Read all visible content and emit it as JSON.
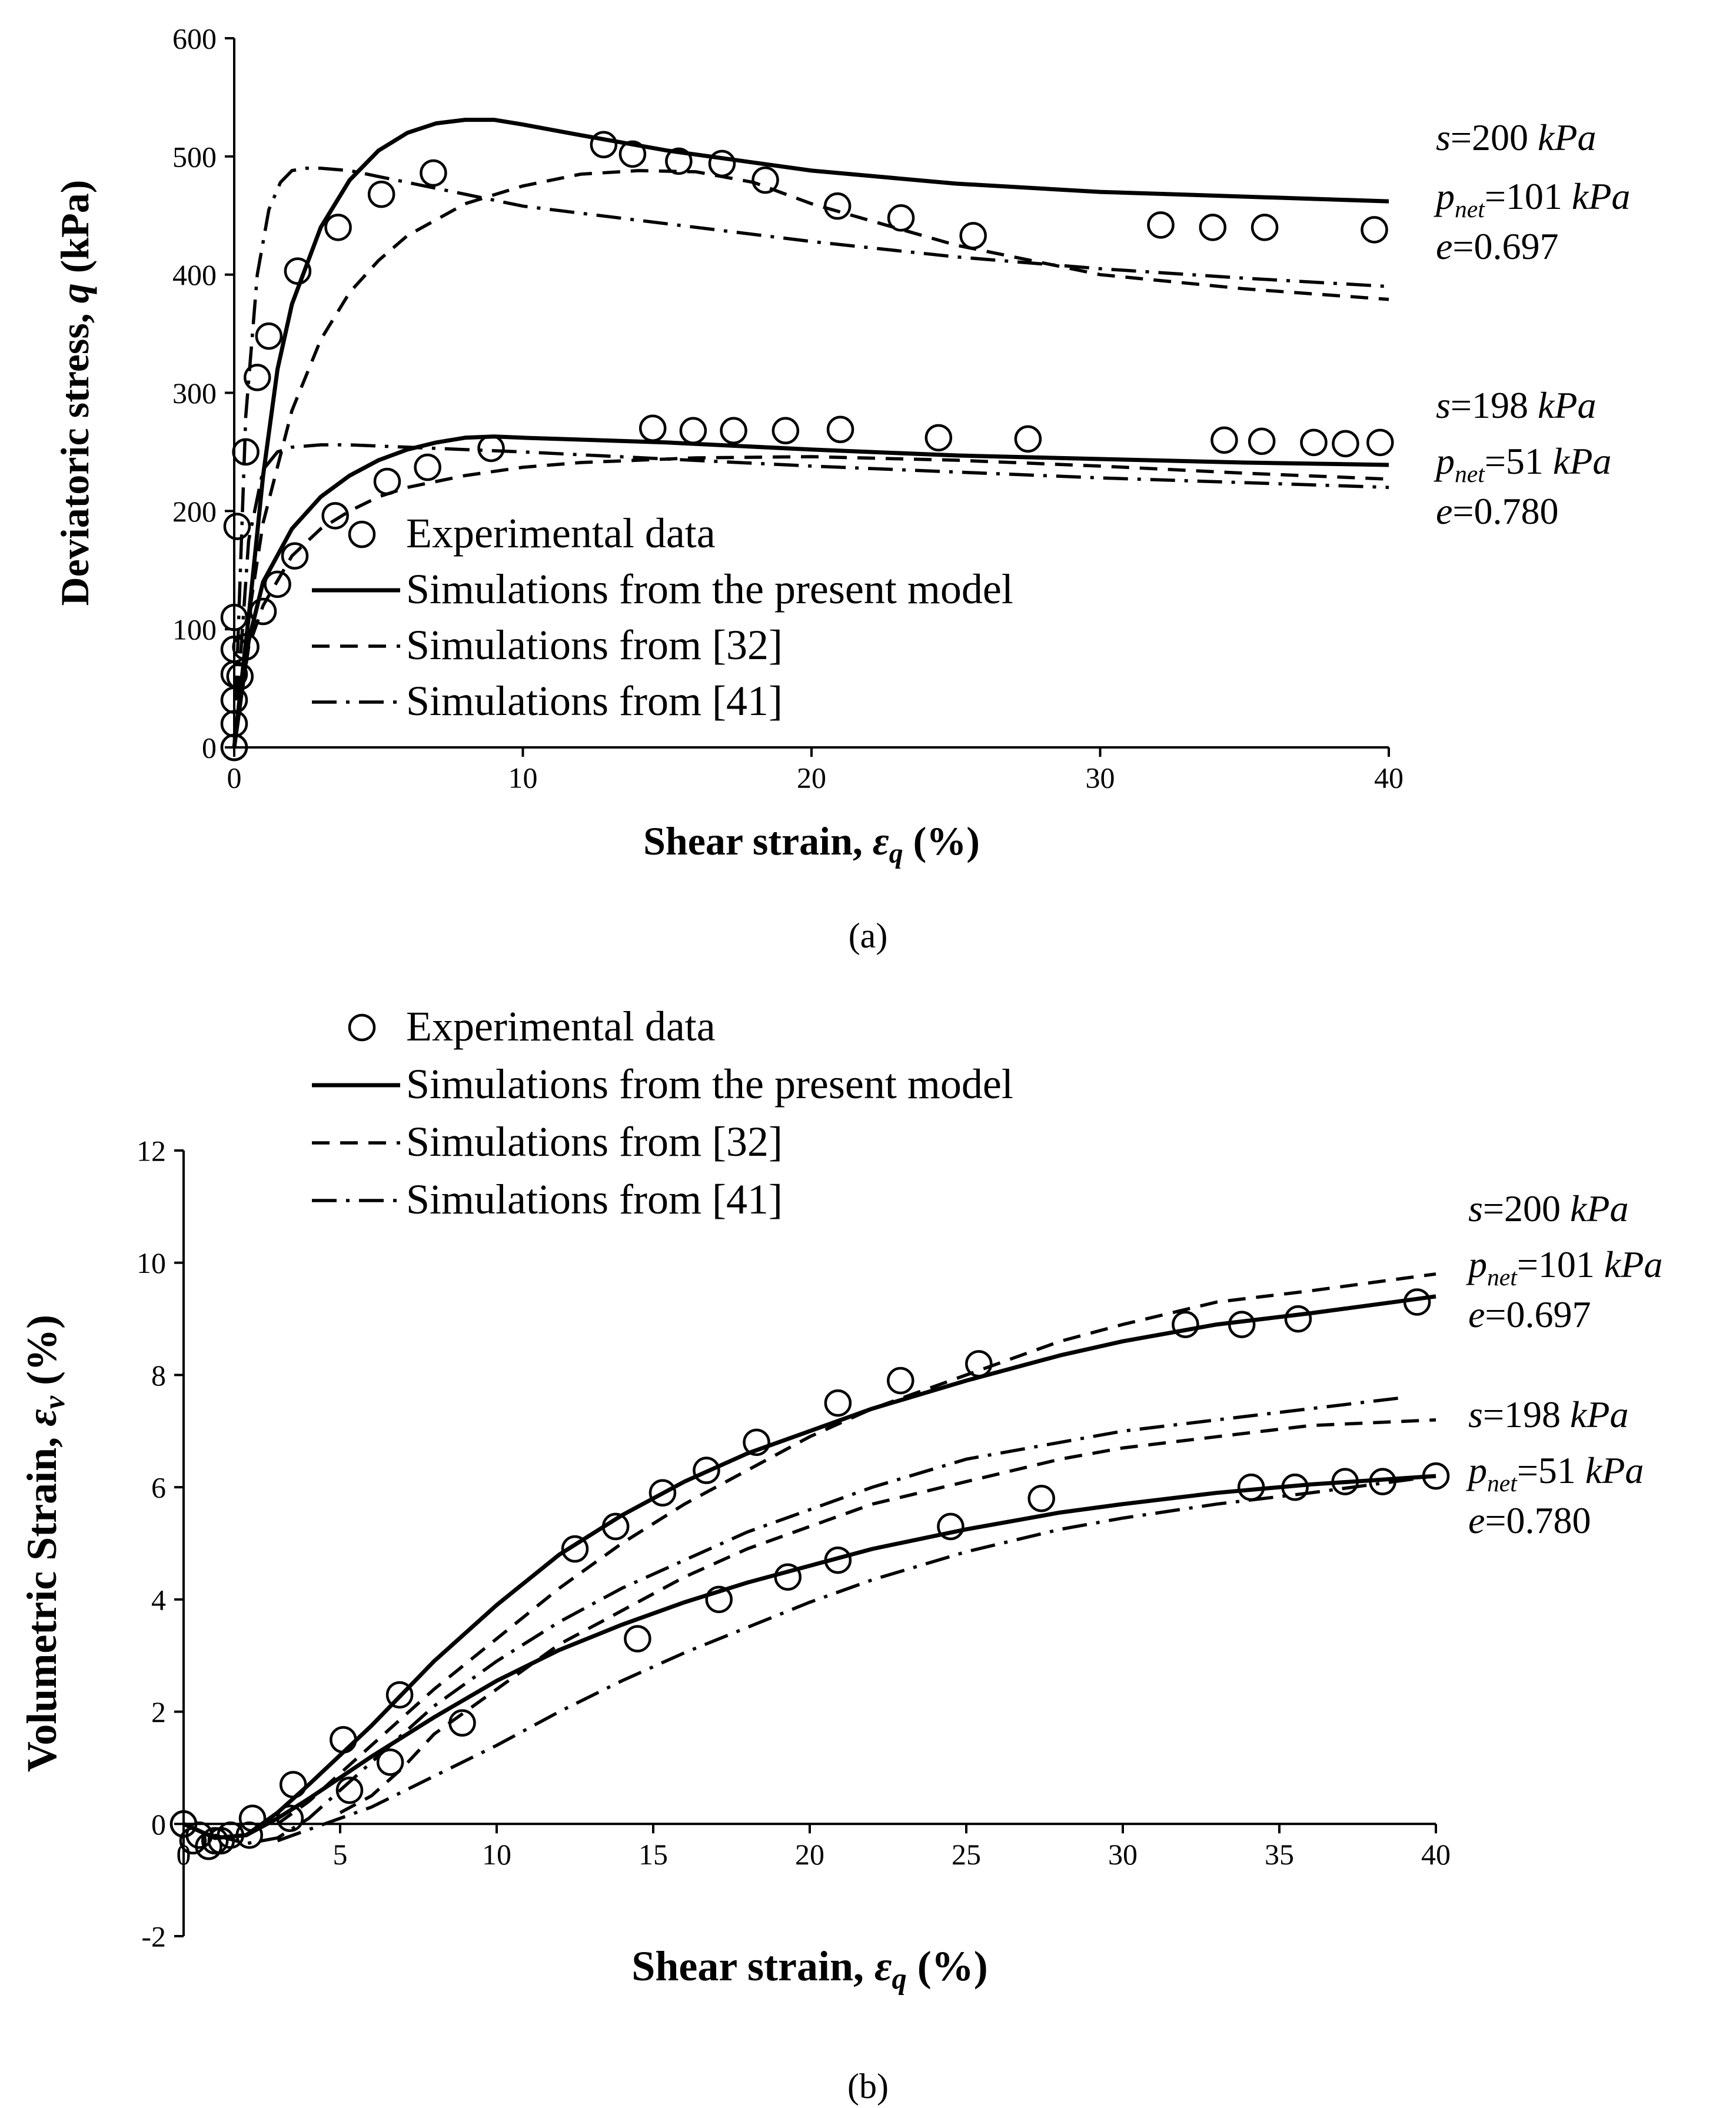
{
  "chart_data": [
    {
      "panel_label": "(a)",
      "type": "line+scatter",
      "xlabel": "Shear strain, εq (%)",
      "xlabel_prefix": "Shear strain, ",
      "xlabel_sym": "ε",
      "xlabel_sub": "q",
      "xlabel_suffix": " (%)",
      "ylabel": "Deviatoric stress, q (kPa)",
      "ylabel_prefix": "Deviatoric stress, ",
      "ylabel_sym": "q",
      "ylabel_sub": "",
      "ylabel_suffix": " (kPa)",
      "xlim": [
        0,
        40
      ],
      "ylim": [
        0,
        600
      ],
      "xticks": [
        0,
        10,
        20,
        30,
        40
      ],
      "yticks": [
        0,
        100,
        200,
        300,
        400,
        500,
        600
      ],
      "legend": [
        {
          "label": "Experimental data",
          "style": "marker"
        },
        {
          "label": "Simulations from the present model",
          "style": "solid"
        },
        {
          "label": "Simulations from [32]",
          "style": "dashed"
        },
        {
          "label": "Simulations from [41]",
          "style": "dashdot"
        }
      ],
      "conditions": [
        {
          "s": "s=200 kPa",
          "p": "pnet=101 kPa",
          "e": "e=0.697"
        },
        {
          "s": "s=198 kPa",
          "p": "pnet=51 kPa",
          "e": "e=0.780"
        }
      ],
      "series": [
        {
          "name": "Experimental data (s=200 kPa)",
          "style": "marker",
          "x": [
            0,
            0,
            0,
            0,
            0,
            0,
            0.1,
            0.4,
            0.8,
            1.2,
            2.2,
            3.6,
            5.1,
            6.9,
            12.8,
            13.8,
            15.4,
            16.9,
            18.4,
            20.9,
            23.1,
            25.6,
            32.1,
            33.9,
            35.7,
            39.5
          ],
          "y": [
            0,
            20,
            40,
            62,
            83,
            110,
            187,
            250,
            313,
            348,
            403,
            440,
            468,
            486,
            510,
            502,
            496,
            494,
            480,
            458,
            448,
            433,
            442,
            440,
            440,
            438
          ]
        },
        {
          "name": "Experimental data (s=198 kPa)",
          "style": "marker",
          "x": [
            0,
            0.2,
            0.4,
            1.0,
            1.5,
            2.1,
            3.5,
            5.3,
            6.7,
            8.9,
            14.5,
            15.9,
            17.3,
            19.1,
            21.0,
            24.4,
            27.5,
            34.3,
            35.6,
            37.4,
            38.5,
            39.7
          ],
          "y": [
            0,
            60,
            85,
            115,
            138,
            162,
            196,
            225,
            237,
            253,
            270,
            268,
            268,
            268,
            269,
            262,
            261,
            260,
            259,
            258,
            257,
            258
          ]
        },
        {
          "name": "Present model (s=200 kPa)",
          "style": "solid",
          "x": [
            0,
            0.5,
            1,
            1.5,
            2,
            3,
            4,
            5,
            6,
            7,
            8,
            9,
            10,
            12,
            15,
            20,
            25,
            30,
            35,
            40
          ],
          "y": [
            0,
            110,
            230,
            320,
            375,
            440,
            480,
            505,
            520,
            528,
            531,
            531,
            527,
            518,
            505,
            488,
            477,
            470,
            466,
            462
          ]
        },
        {
          "name": "Present model (s=198 kPa)",
          "style": "solid",
          "x": [
            0,
            0.5,
            1,
            2,
            3,
            4,
            5,
            6,
            7,
            8,
            9,
            10,
            15,
            20,
            25,
            30,
            35,
            40
          ],
          "y": [
            0,
            90,
            140,
            185,
            212,
            230,
            243,
            252,
            258,
            262,
            263,
            262,
            258,
            252,
            247,
            244,
            241,
            239
          ]
        },
        {
          "name": "Simulations from [32] (s=200 kPa)",
          "style": "dashed",
          "x": [
            0,
            0.5,
            1,
            2,
            3,
            4,
            5,
            6,
            8,
            10,
            12,
            14,
            16,
            18,
            20,
            25,
            30,
            35,
            40
          ],
          "y": [
            0,
            110,
            190,
            285,
            345,
            385,
            412,
            433,
            460,
            475,
            485,
            488,
            487,
            478,
            460,
            425,
            400,
            388,
            379
          ]
        },
        {
          "name": "Simulations from [32] (s=198 kPa)",
          "style": "dashed",
          "x": [
            0,
            0.5,
            1,
            2,
            3,
            4,
            5,
            6,
            8,
            10,
            12,
            14,
            16,
            20,
            25,
            30,
            35,
            40
          ],
          "y": [
            0,
            85,
            120,
            162,
            185,
            200,
            212,
            220,
            230,
            237,
            241,
            243,
            245,
            246,
            243,
            238,
            232,
            227
          ]
        },
        {
          "name": "Simulations from [41] (s=200 kPa)",
          "style": "dashdot",
          "x": [
            0,
            0.4,
            0.8,
            1.2,
            1.6,
            2.0,
            2.5,
            3,
            4,
            6,
            8,
            10,
            15,
            20,
            25,
            30,
            35,
            40
          ],
          "y": [
            0,
            280,
            400,
            455,
            478,
            488,
            490,
            490,
            488,
            478,
            468,
            458,
            443,
            428,
            415,
            405,
            397,
            390
          ]
        },
        {
          "name": "Simulations from [41] (s=198 kPa)",
          "style": "dashdot",
          "x": [
            0,
            0.5,
            1,
            1.5,
            2,
            3,
            4,
            6,
            10,
            15,
            20,
            25,
            30,
            35,
            40
          ],
          "y": [
            0,
            175,
            235,
            250,
            254,
            256,
            256,
            254,
            250,
            244,
            238,
            233,
            228,
            224,
            220
          ]
        }
      ]
    },
    {
      "panel_label": "(b)",
      "type": "line+scatter",
      "xlabel": "Shear strain, εq (%)",
      "xlabel_prefix": "Shear strain, ",
      "xlabel_sym": "ε",
      "xlabel_sub": "q",
      "xlabel_suffix": " (%)",
      "ylabel": "Volumetric Strain, εv (%)",
      "ylabel_prefix": "Volumetric Strain, ",
      "ylabel_sym": "ε",
      "ylabel_sub": "v",
      "ylabel_suffix": " (%)",
      "xlim": [
        0,
        40
      ],
      "ylim": [
        -2,
        12
      ],
      "xticks": [
        0,
        5,
        10,
        15,
        20,
        25,
        30,
        35,
        40
      ],
      "yticks": [
        -2,
        0,
        2,
        4,
        6,
        8,
        10,
        12
      ],
      "legend": [
        {
          "label": "Experimental data",
          "style": "marker"
        },
        {
          "label": "Simulations from the present model",
          "style": "solid"
        },
        {
          "label": "Simulations from [32]",
          "style": "dashed"
        },
        {
          "label": "Simulations from [41]",
          "style": "dashdot"
        }
      ],
      "conditions": [
        {
          "s": "s=200 kPa",
          "p": "pnet=101 kPa",
          "e": "e=0.697"
        },
        {
          "s": "s=198 kPa",
          "p": "pnet=51 kPa",
          "e": "e=0.780"
        }
      ],
      "series": [
        {
          "name": "Experimental data (s=200 kPa)",
          "style": "marker",
          "x": [
            0,
            0.5,
            1.0,
            1.5,
            2.2,
            3.5,
            5.1,
            6.9,
            12.5,
            13.8,
            15.3,
            16.7,
            18.3,
            20.9,
            22.9,
            25.4,
            32.0,
            33.8,
            35.6,
            39.4
          ],
          "y": [
            0,
            -0.2,
            -0.3,
            -0.2,
            0.1,
            0.7,
            1.5,
            2.3,
            4.9,
            5.3,
            5.9,
            6.3,
            6.8,
            7.5,
            7.9,
            8.2,
            8.9,
            8.9,
            9.0,
            9.3
          ]
        },
        {
          "name": "Experimental data (s=198 kPa)",
          "style": "marker",
          "x": [
            0,
            0.3,
            0.8,
            1.2,
            2.1,
            3.4,
            5.3,
            6.6,
            8.9,
            14.5,
            17.1,
            19.3,
            20.9,
            24.5,
            27.4,
            34.1,
            35.5,
            37.1,
            38.3,
            40.0
          ],
          "y": [
            0,
            -0.3,
            -0.4,
            -0.3,
            -0.2,
            0.1,
            0.6,
            1.1,
            1.8,
            3.3,
            4.0,
            4.4,
            4.7,
            5.3,
            5.8,
            6.0,
            6.0,
            6.1,
            6.1,
            6.2
          ]
        },
        {
          "name": "Present model (s=200 kPa)",
          "style": "solid",
          "x": [
            0,
            1,
            2,
            3,
            4,
            6,
            8,
            10,
            12,
            14,
            16,
            18,
            20,
            22,
            25,
            28,
            30,
            33,
            36,
            40
          ],
          "y": [
            0,
            -0.25,
            -0.2,
            0.2,
            0.7,
            1.75,
            2.9,
            3.9,
            4.8,
            5.5,
            6.1,
            6.6,
            7.0,
            7.4,
            7.9,
            8.35,
            8.6,
            8.9,
            9.1,
            9.4
          ]
        },
        {
          "name": "Present model (s=198 kPa)",
          "style": "solid",
          "x": [
            0,
            1,
            2,
            3,
            4,
            6,
            8,
            10,
            12,
            14,
            16,
            18,
            20,
            22,
            25,
            28,
            30,
            33,
            36,
            40
          ],
          "y": [
            0,
            -0.25,
            -0.2,
            0.1,
            0.45,
            1.2,
            1.9,
            2.55,
            3.1,
            3.55,
            3.95,
            4.3,
            4.6,
            4.9,
            5.25,
            5.55,
            5.7,
            5.9,
            6.05,
            6.2
          ]
        },
        {
          "name": "Simulations from [32] (s=200 kPa)",
          "style": "dashed",
          "x": [
            3,
            4,
            5,
            6,
            7,
            8,
            10,
            12,
            14,
            16,
            18,
            20,
            22,
            25,
            28,
            30,
            33,
            36,
            40
          ],
          "y": [
            0,
            0.4,
            0.9,
            1.4,
            1.9,
            2.4,
            3.3,
            4.2,
            5.0,
            5.7,
            6.3,
            6.9,
            7.4,
            8.0,
            8.6,
            8.9,
            9.3,
            9.5,
            9.8
          ]
        },
        {
          "name": "Simulations from [32] (s=198 kPa)",
          "style": "dashed",
          "x": [
            5,
            6,
            7,
            8,
            10,
            12,
            14,
            16,
            18,
            20,
            22,
            25,
            28,
            30,
            33,
            36,
            40
          ],
          "y": [
            0.2,
            0.5,
            1.0,
            1.6,
            2.4,
            3.2,
            3.8,
            4.4,
            4.9,
            5.3,
            5.7,
            6.1,
            6.5,
            6.7,
            6.9,
            7.1,
            7.2
          ]
        },
        {
          "name": "Simulations from [41] (s=200 kPa)",
          "style": "dashdot",
          "x": [
            1,
            2,
            3,
            4,
            5,
            6,
            8,
            10,
            12,
            14,
            16,
            18,
            20,
            22,
            25,
            28,
            30,
            33,
            36,
            39
          ],
          "y": [
            -0.2,
            -0.35,
            -0.25,
            0.1,
            0.6,
            1.1,
            2.1,
            2.9,
            3.6,
            4.2,
            4.7,
            5.2,
            5.6,
            6.0,
            6.5,
            6.8,
            7.0,
            7.2,
            7.4,
            7.6
          ]
        },
        {
          "name": "Simulations from [41] (s=198 kPa)",
          "style": "dashdot",
          "x": [
            3,
            4,
            4.5,
            6,
            8,
            10,
            12,
            14,
            16,
            18,
            20,
            22,
            25,
            28,
            30,
            33,
            36,
            40
          ],
          "y": [
            -0.3,
            -0.1,
            0,
            0.3,
            0.85,
            1.4,
            2.0,
            2.55,
            3.05,
            3.5,
            3.95,
            4.35,
            4.85,
            5.25,
            5.45,
            5.7,
            5.9,
            6.2
          ]
        }
      ]
    }
  ]
}
